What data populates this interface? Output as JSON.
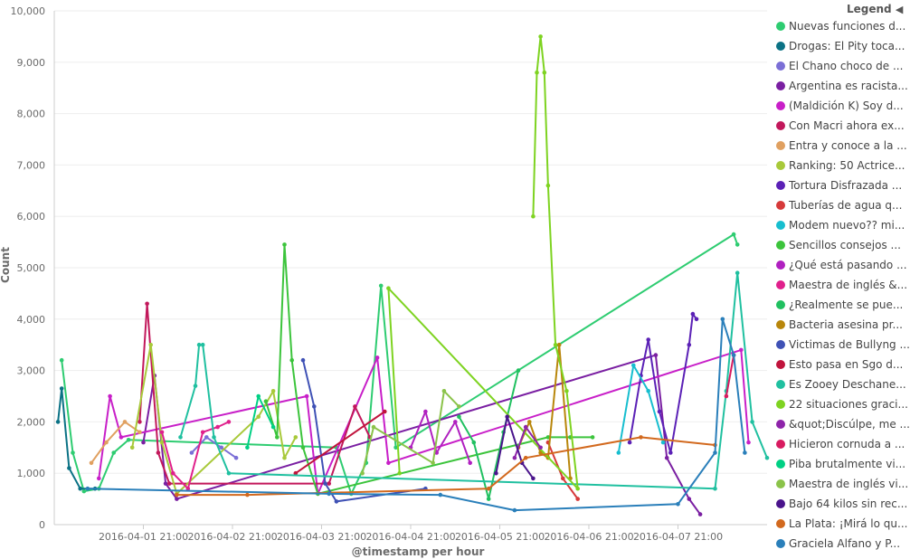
{
  "chart_data": {
    "type": "line",
    "ylabel": "Count",
    "xlabel": "@timestamp per hour",
    "ylim": [
      0,
      10000
    ],
    "y_ticks": [
      "0",
      "1,000",
      "2,000",
      "3,000",
      "4,000",
      "5,000",
      "6,000",
      "7,000",
      "8,000",
      "9,000",
      "10,000"
    ],
    "x_tick_labels": [
      "2016-04-01 21:00",
      "2016-04-02 21:00",
      "2016-04-03 21:00",
      "2016-04-04 21:00",
      "2016-04-05 21:00",
      "2016-04-06 21:00",
      "2016-04-07 21:00"
    ],
    "grid": "horizontal",
    "legend_position": "right",
    "series": [
      {
        "name": "Nuevas funciones d...",
        "color": "#2ecc71",
        "points": [
          [
            "2016-03-31 23:00",
            3200
          ],
          [
            "2016-04-01 02:00",
            1400
          ],
          [
            "2016-04-01 05:00",
            650
          ],
          [
            "2016-04-01 09:00",
            700
          ],
          [
            "2016-04-01 13:00",
            1400
          ],
          [
            "2016-04-01 17:00",
            1650
          ],
          [
            "2016-04-04 01:00",
            1500
          ],
          [
            "2016-04-04 05:00",
            600
          ],
          [
            "2016-04-04 09:00",
            1200
          ],
          [
            "2016-04-04 13:00",
            4650
          ],
          [
            "2016-04-04 17:00",
            1500
          ],
          [
            "2016-04-08 12:00",
            5650
          ],
          [
            "2016-04-08 13:00",
            5450
          ]
        ]
      },
      {
        "name": "Drogas: El Pity toca...",
        "color": "#0b7285",
        "points": [
          [
            "2016-03-31 22:00",
            2000
          ],
          [
            "2016-03-31 23:00",
            2650
          ],
          [
            "2016-04-01 01:00",
            1100
          ],
          [
            "2016-04-01 04:00",
            700
          ],
          [
            "2016-04-01 08:00",
            700
          ]
        ]
      },
      {
        "name": "El Chano choco de ...",
        "color": "#7b6fd6",
        "points": [
          [
            "2016-04-02 10:00",
            1400
          ],
          [
            "2016-04-02 14:00",
            1700
          ],
          [
            "2016-04-02 18:00",
            1500
          ],
          [
            "2016-04-02 22:00",
            1300
          ]
        ]
      },
      {
        "name": "Argentina es racista...",
        "color": "#7a1fa2",
        "points": [
          [
            "2016-04-01 21:00",
            1600
          ],
          [
            "2016-04-02 00:00",
            2900
          ],
          [
            "2016-04-02 03:00",
            800
          ],
          [
            "2016-04-02 06:00",
            500
          ],
          [
            "2016-04-07 15:00",
            3300
          ],
          [
            "2016-04-07 18:00",
            1300
          ],
          [
            "2016-04-08 00:00",
            500
          ],
          [
            "2016-04-08 03:00",
            200
          ]
        ]
      },
      {
        "name": "(Maldición K) Soy d...",
        "color": "#c81fc8",
        "points": [
          [
            "2016-04-01 09:00",
            900
          ],
          [
            "2016-04-01 12:00",
            2500
          ],
          [
            "2016-04-01 15:00",
            1700
          ],
          [
            "2016-04-03 17:00",
            2500
          ],
          [
            "2016-04-03 20:00",
            600
          ],
          [
            "2016-04-04 12:00",
            3250
          ],
          [
            "2016-04-04 15:00",
            1200
          ],
          [
            "2016-04-08 14:00",
            3400
          ],
          [
            "2016-04-08 16:00",
            1600
          ]
        ]
      },
      {
        "name": "Con Macri ahora ex...",
        "color": "#c2185b",
        "points": [
          [
            "2016-04-01 20:00",
            2000
          ],
          [
            "2016-04-01 22:00",
            4300
          ],
          [
            "2016-04-02 01:00",
            1400
          ],
          [
            "2016-04-02 04:00",
            800
          ],
          [
            "2016-04-03 23:00",
            800
          ],
          [
            "2016-04-04 06:00",
            2300
          ],
          [
            "2016-04-04 10:00",
            1700
          ]
        ]
      },
      {
        "name": "Entra y conoce a la ...",
        "color": "#e0a060",
        "points": [
          [
            "2016-04-01 07:00",
            1200
          ],
          [
            "2016-04-01 11:00",
            1600
          ],
          [
            "2016-04-01 16:00",
            2000
          ],
          [
            "2016-04-01 20:00",
            1800
          ]
        ]
      },
      {
        "name": "Ranking: 50 Actrice...",
        "color": "#a8c93a",
        "points": [
          [
            "2016-04-01 18:00",
            1500
          ],
          [
            "2016-04-01 23:00",
            3500
          ],
          [
            "2016-04-02 02:00",
            1600
          ],
          [
            "2016-04-02 06:00",
            600
          ],
          [
            "2016-04-03 04:00",
            2100
          ],
          [
            "2016-04-03 08:00",
            2600
          ],
          [
            "2016-04-03 11:00",
            1300
          ],
          [
            "2016-04-03 14:00",
            1700
          ]
        ]
      },
      {
        "name": "Tortura Disfrazada ...",
        "color": "#5b21b6",
        "points": [
          [
            "2016-04-07 08:00",
            1600
          ],
          [
            "2016-04-07 11:00",
            2900
          ],
          [
            "2016-04-07 13:00",
            3600
          ],
          [
            "2016-04-07 16:00",
            2200
          ],
          [
            "2016-04-07 19:00",
            1400
          ],
          [
            "2016-04-08 00:00",
            3500
          ],
          [
            "2016-04-08 01:00",
            4100
          ],
          [
            "2016-04-08 02:00",
            4000
          ]
        ]
      },
      {
        "name": "Tuberías de agua q...",
        "color": "#d63a3a",
        "points": [
          [
            "2016-04-06 10:00",
            1600
          ],
          [
            "2016-04-06 14:00",
            900
          ],
          [
            "2016-04-06 18:00",
            500
          ]
        ]
      },
      {
        "name": "Modem nuevo?? mi...",
        "color": "#17becf",
        "points": [
          [
            "2016-04-07 05:00",
            1400
          ],
          [
            "2016-04-07 09:00",
            3100
          ],
          [
            "2016-04-07 13:00",
            2600
          ],
          [
            "2016-04-07 17:00",
            1600
          ]
        ]
      },
      {
        "name": "Sencillos consejos ...",
        "color": "#3cc43c",
        "points": [
          [
            "2016-04-03 06:00",
            2400
          ],
          [
            "2016-04-03 09:00",
            1700
          ],
          [
            "2016-04-03 11:00",
            5450
          ],
          [
            "2016-04-03 13:00",
            3200
          ],
          [
            "2016-04-03 16:00",
            1500
          ],
          [
            "2016-04-03 20:00",
            600
          ],
          [
            "2016-04-06 10:00",
            1700
          ],
          [
            "2016-04-06 16:00",
            1700
          ],
          [
            "2016-04-06 22:00",
            1700
          ]
        ]
      },
      {
        "name": "¿Qué está pasando ...",
        "color": "#b020c0",
        "points": [
          [
            "2016-04-04 21:00",
            1500
          ],
          [
            "2016-04-05 01:00",
            2200
          ],
          [
            "2016-04-05 04:00",
            1400
          ],
          [
            "2016-04-05 09:00",
            2000
          ],
          [
            "2016-04-05 13:00",
            1200
          ]
        ]
      },
      {
        "name": "Maestra de inglés &...",
        "color": "#e0208c",
        "points": [
          [
            "2016-04-02 02:00",
            1800
          ],
          [
            "2016-04-02 05:00",
            1000
          ],
          [
            "2016-04-02 09:00",
            700
          ],
          [
            "2016-04-02 13:00",
            1800
          ],
          [
            "2016-04-02 17:00",
            1900
          ],
          [
            "2016-04-02 20:00",
            2000
          ]
        ]
      },
      {
        "name": "¿Realmente se pue...",
        "color": "#20c060",
        "points": [
          [
            "2016-04-05 10:00",
            2100
          ],
          [
            "2016-04-05 14:00",
            1600
          ],
          [
            "2016-04-05 18:00",
            500
          ],
          [
            "2016-04-05 22:00",
            1800
          ],
          [
            "2016-04-06 02:00",
            3000
          ]
        ]
      },
      {
        "name": "Bacteria asesina pr...",
        "color": "#b8860b",
        "points": [
          [
            "2016-04-06 02:00",
            1500
          ],
          [
            "2016-04-06 05:00",
            2000
          ],
          [
            "2016-04-06 08:00",
            1400
          ],
          [
            "2016-04-06 10:00",
            1300
          ],
          [
            "2016-04-06 13:00",
            3500
          ],
          [
            "2016-04-06 16:00",
            900
          ]
        ]
      },
      {
        "name": "Victimas de Bullyng ...",
        "color": "#3f51b5",
        "points": [
          [
            "2016-04-03 16:00",
            3200
          ],
          [
            "2016-04-03 19:00",
            2300
          ],
          [
            "2016-04-03 22:00",
            800
          ],
          [
            "2016-04-04 01:00",
            450
          ],
          [
            "2016-04-05 01:00",
            700
          ]
        ]
      },
      {
        "name": "Esto pasa en Sgo d...",
        "color": "#c0143c",
        "points": [
          [
            "2016-04-03 14:00",
            1000
          ],
          [
            "2016-04-04 14:00",
            2200
          ]
        ]
      },
      {
        "name": "Es Zooey Deschane...",
        "color": "#20c0a0",
        "points": [
          [
            "2016-04-02 07:00",
            1700
          ],
          [
            "2016-04-02 11:00",
            2700
          ],
          [
            "2016-04-02 12:00",
            3500
          ],
          [
            "2016-04-02 13:00",
            3500
          ],
          [
            "2016-04-02 16:00",
            1700
          ],
          [
            "2016-04-02 20:00",
            1000
          ],
          [
            "2016-04-08 07:00",
            700
          ],
          [
            "2016-04-08 10:00",
            2600
          ],
          [
            "2016-04-08 13:00",
            4900
          ],
          [
            "2016-04-08 17:00",
            2000
          ],
          [
            "2016-04-08 21:00",
            1300
          ]
        ]
      },
      {
        "name": "22 situaciones graci...",
        "color": "#7ed321",
        "points": [
          [
            "2016-04-06 06:00",
            6000
          ],
          [
            "2016-04-06 07:00",
            8800
          ],
          [
            "2016-04-06 08:00",
            9500
          ],
          [
            "2016-04-06 09:00",
            8800
          ],
          [
            "2016-04-06 10:00",
            6600
          ],
          [
            "2016-04-06 12:00",
            3500
          ],
          [
            "2016-04-06 15:00",
            2600
          ],
          [
            "2016-04-06 18:00",
            700
          ],
          [
            "2016-04-04 15:00",
            4600
          ],
          [
            "2016-04-04 18:00",
            1000
          ]
        ]
      },
      {
        "name": "&quot;Discúlpe, me ...",
        "color": "#8e24aa",
        "points": [
          [
            "2016-04-06 01:00",
            1300
          ],
          [
            "2016-04-06 04:00",
            1900
          ],
          [
            "2016-04-06 08:00",
            1500
          ]
        ]
      },
      {
        "name": "Hicieron cornuda a ...",
        "color": "#d81b60",
        "points": [
          [
            "2016-04-08 10:00",
            2500
          ],
          [
            "2016-04-08 12:00",
            3300
          ]
        ]
      },
      {
        "name": "Piba brutalmente vi...",
        "color": "#00d084",
        "points": [
          [
            "2016-04-03 01:00",
            1500
          ],
          [
            "2016-04-03 04:00",
            2500
          ],
          [
            "2016-04-03 08:00",
            1900
          ]
        ]
      },
      {
        "name": "Maestra de inglés vi...",
        "color": "#8bc34a",
        "points": [
          [
            "2016-04-04 08:00",
            1000
          ],
          [
            "2016-04-04 11:00",
            1900
          ],
          [
            "2016-04-05 03:00",
            1200
          ],
          [
            "2016-04-05 06:00",
            2600
          ],
          [
            "2016-04-05 10:00",
            2300
          ]
        ]
      },
      {
        "name": "Bajo 64 kilos sin rec...",
        "color": "#4a148c",
        "points": [
          [
            "2016-04-05 20:00",
            1000
          ],
          [
            "2016-04-05 23:00",
            2100
          ],
          [
            "2016-04-06 03:00",
            1200
          ],
          [
            "2016-04-06 06:00",
            900
          ]
        ]
      },
      {
        "name": "La Plata: ¡Mirá lo qu...",
        "color": "#d2691e",
        "points": [
          [
            "2016-04-02 06:00",
            580
          ],
          [
            "2016-04-03 01:00",
            580
          ],
          [
            "2016-04-05 18:00",
            700
          ],
          [
            "2016-04-06 04:00",
            1300
          ],
          [
            "2016-04-07 11:00",
            1700
          ],
          [
            "2016-04-08 07:00",
            1550
          ]
        ]
      },
      {
        "name": "Graciela Alfano y P...",
        "color": "#2a7fba",
        "points": [
          [
            "2016-04-01 06:00",
            700
          ],
          [
            "2016-04-03 23:00",
            600
          ],
          [
            "2016-04-05 05:00",
            580
          ],
          [
            "2016-04-06 01:00",
            280
          ],
          [
            "2016-04-07 21:00",
            400
          ],
          [
            "2016-04-08 07:00",
            1400
          ],
          [
            "2016-04-08 09:00",
            4000
          ],
          [
            "2016-04-08 12:00",
            3300
          ],
          [
            "2016-04-08 15:00",
            1400
          ]
        ]
      }
    ]
  },
  "legend": {
    "title": "Legend",
    "items": [
      {
        "label": "Nuevas funciones d...",
        "color": "#2ecc71"
      },
      {
        "label": "Drogas: El Pity toca...",
        "color": "#0b7285"
      },
      {
        "label": "El Chano choco de ...",
        "color": "#7b6fd6"
      },
      {
        "label": "Argentina es racista...",
        "color": "#7a1fa2"
      },
      {
        "label": "(Maldición K) Soy d...",
        "color": "#c81fc8"
      },
      {
        "label": "Con Macri ahora ex...",
        "color": "#c2185b"
      },
      {
        "label": "Entra y conoce a la ...",
        "color": "#e0a060"
      },
      {
        "label": "Ranking: 50 Actrice...",
        "color": "#a8c93a"
      },
      {
        "label": "Tortura Disfrazada ...",
        "color": "#5b21b6"
      },
      {
        "label": "Tuberías de agua q...",
        "color": "#d63a3a"
      },
      {
        "label": "Modem nuevo?? mi...",
        "color": "#17becf"
      },
      {
        "label": "Sencillos consejos ...",
        "color": "#3cc43c"
      },
      {
        "label": "¿Qué está pasando ...",
        "color": "#b020c0"
      },
      {
        "label": "Maestra de inglés &...",
        "color": "#e0208c"
      },
      {
        "label": "¿Realmente se pue...",
        "color": "#20c060"
      },
      {
        "label": "Bacteria asesina pr...",
        "color": "#b8860b"
      },
      {
        "label": "Victimas de Bullyng ...",
        "color": "#3f51b5"
      },
      {
        "label": "Esto pasa en Sgo d...",
        "color": "#c0143c"
      },
      {
        "label": "Es Zooey Deschane...",
        "color": "#20c0a0"
      },
      {
        "label": "22 situaciones graci...",
        "color": "#7ed321"
      },
      {
        "label": "&quot;Discúlpe, me ...",
        "color": "#8e24aa"
      },
      {
        "label": "Hicieron cornuda a ...",
        "color": "#d81b60"
      },
      {
        "label": "Piba brutalmente vi...",
        "color": "#00d084"
      },
      {
        "label": "Maestra de inglés vi...",
        "color": "#8bc34a"
      },
      {
        "label": "Bajo 64 kilos sin rec...",
        "color": "#4a148c"
      },
      {
        "label": "La Plata: ¡Mirá lo qu...",
        "color": "#d2691e"
      },
      {
        "label": "Graciela Alfano y P...",
        "color": "#2a7fba"
      }
    ]
  }
}
